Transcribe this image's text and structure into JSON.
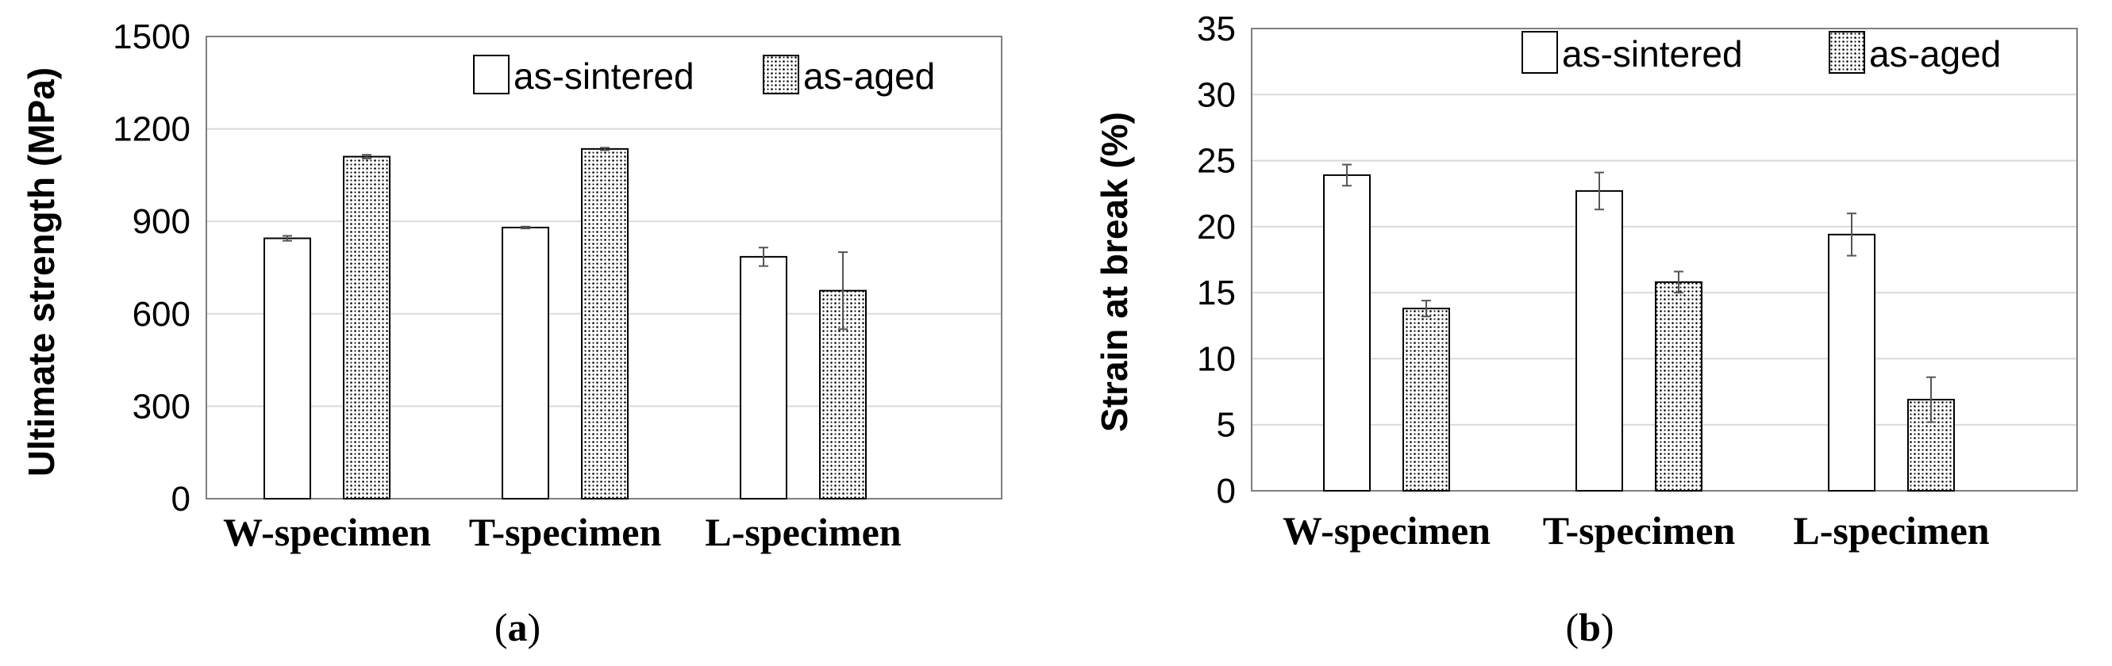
{
  "chart_data": [
    {
      "type": "bar",
      "panel_label": "a",
      "title": "",
      "xlabel": "",
      "ylabel": "Ultimate strength (MPa)",
      "ylim": [
        0,
        1500
      ],
      "yticks": [
        0,
        300,
        600,
        900,
        1200,
        1500
      ],
      "grid": true,
      "legend": "top-right",
      "categories": [
        "W-specimen",
        "T-specimen",
        "L-specimen"
      ],
      "series": [
        {
          "name": "as-sintered",
          "pattern": "plain",
          "values": [
            845,
            880,
            785
          ],
          "errors": [
            8,
            3,
            30
          ]
        },
        {
          "name": "as-aged",
          "pattern": "dotted",
          "values": [
            1110,
            1135,
            675
          ],
          "errors": [
            6,
            4,
            125
          ]
        }
      ]
    },
    {
      "type": "bar",
      "panel_label": "b",
      "title": "",
      "xlabel": "",
      "ylabel": "Strain at break (%)",
      "ylim": [
        0,
        35
      ],
      "yticks": [
        0,
        5,
        10,
        15,
        20,
        25,
        30,
        35
      ],
      "grid": true,
      "legend": "top-right",
      "categories": [
        "W-specimen",
        "T-specimen",
        "L-specimen"
      ],
      "series": [
        {
          "name": "as-sintered",
          "pattern": "plain",
          "values": [
            23.9,
            22.7,
            19.4
          ],
          "errors": [
            0.8,
            1.4,
            1.6
          ]
        },
        {
          "name": "as-aged",
          "pattern": "dotted",
          "values": [
            13.8,
            15.8,
            6.9
          ],
          "errors": [
            0.6,
            0.8,
            1.7
          ]
        }
      ]
    }
  ]
}
